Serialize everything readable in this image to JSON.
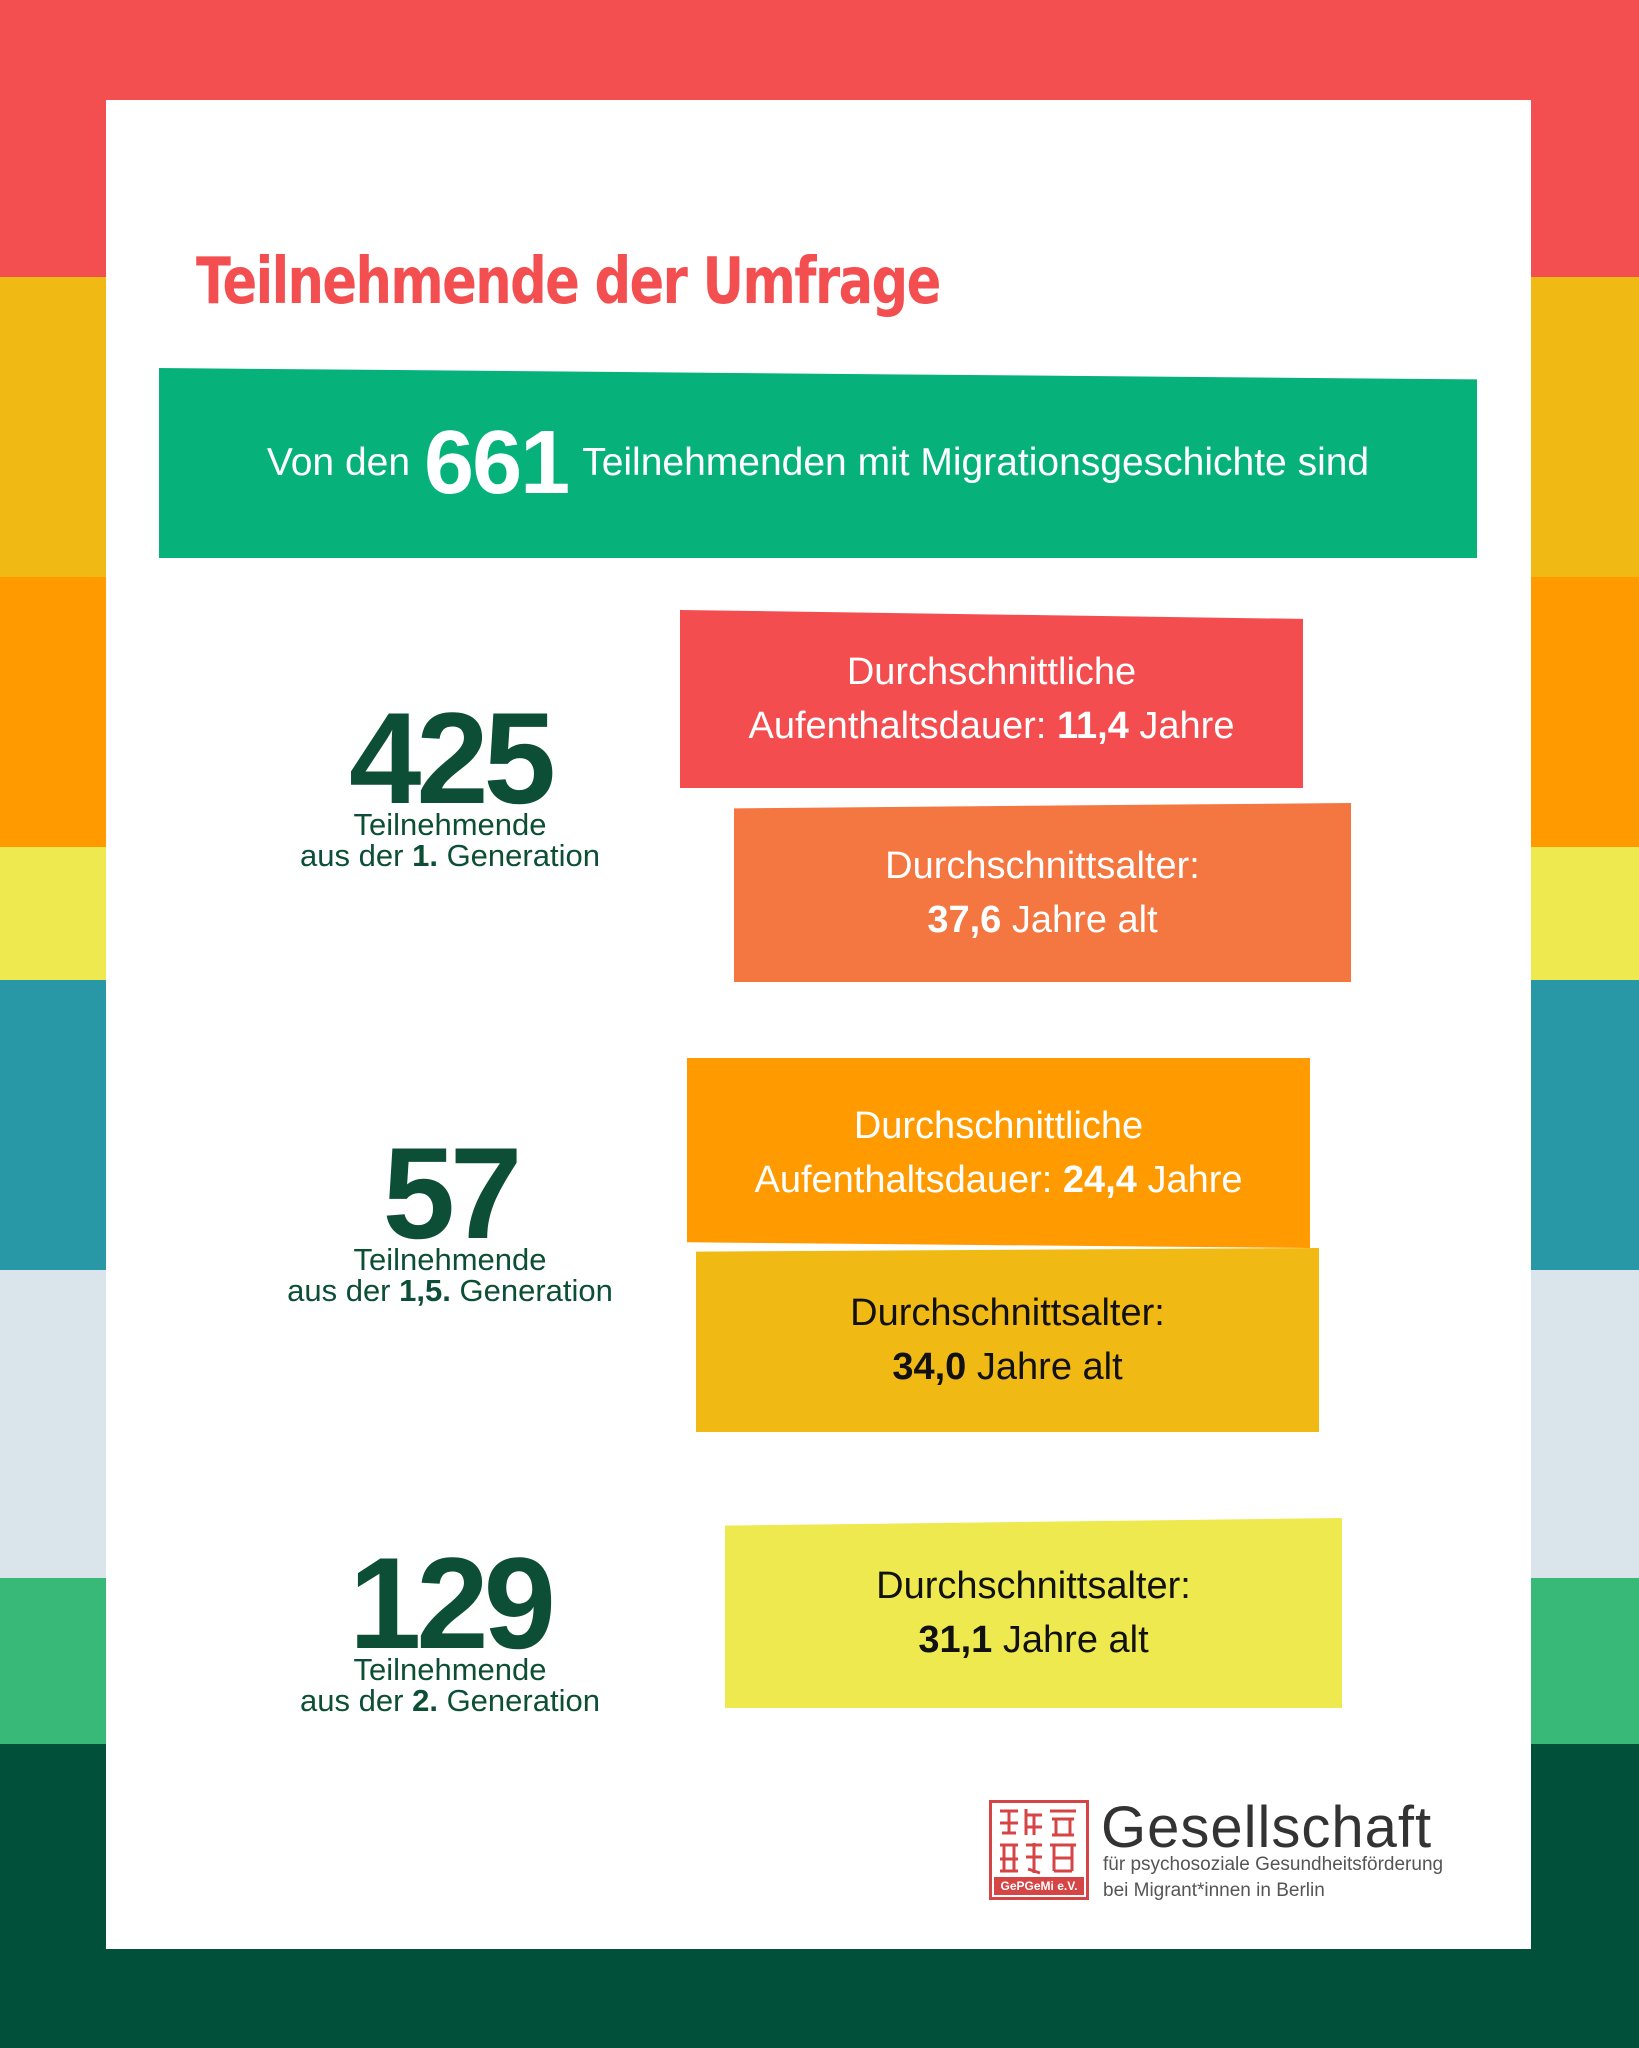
{
  "colors": {
    "stripes": [
      "#f34f50",
      "#f0b914",
      "#ff9a00",
      "#eee94e",
      "#2897a6",
      "#dae5eb",
      "#38b977",
      "#00503a"
    ],
    "title": "#f34e50",
    "banner": "#06b27a",
    "dark_green": "#0d4f36",
    "box_red": "#f34d50",
    "box_orange": "#f47640",
    "box_amber": "#ff9a00",
    "box_gold": "#f0b914",
    "box_yellow": "#eee94e"
  },
  "title": "Teilnehmende der Umfrage",
  "banner": {
    "prefix": "Von den",
    "number": "661",
    "suffix": "Teilnehmenden mit Migrationsgeschichte sind"
  },
  "groups": [
    {
      "count": "425",
      "label": "Teilnehmende",
      "gen_prefix": "aus der",
      "gen_bold": "1.",
      "gen_suffix": "Generation",
      "stay": {
        "line1": "Durchschnittliche",
        "line2": "Aufenthaltsdauer:",
        "value": "11,4",
        "unit": "Jahre"
      },
      "age": {
        "line1": "Durchschnittsalter:",
        "value": "37,6",
        "unit": "Jahre alt"
      }
    },
    {
      "count": "57",
      "label": "Teilnehmende",
      "gen_prefix": "aus der",
      "gen_bold": "1,5.",
      "gen_suffix": "Generation",
      "stay": {
        "line1": "Durchschnittliche",
        "line2": "Aufenthaltsdauer:",
        "value": "24,4",
        "unit": "Jahre"
      },
      "age": {
        "line1": "Durchschnittsalter:",
        "value": "34,0",
        "unit": "Jahre alt"
      }
    },
    {
      "count": "129",
      "label": "Teilnehmende",
      "gen_prefix": "aus der",
      "gen_bold": "2.",
      "gen_suffix": "Generation",
      "age": {
        "line1": "Durchschnittsalter:",
        "value": "31,1",
        "unit": "Jahre alt"
      }
    }
  ],
  "logo": {
    "seal_text": "GePGeMi e.V.",
    "name": "Gesellschaft",
    "line1": "für psychosoziale Gesundheitsförderung",
    "line2": "bei Migrant*innen in Berlin"
  }
}
